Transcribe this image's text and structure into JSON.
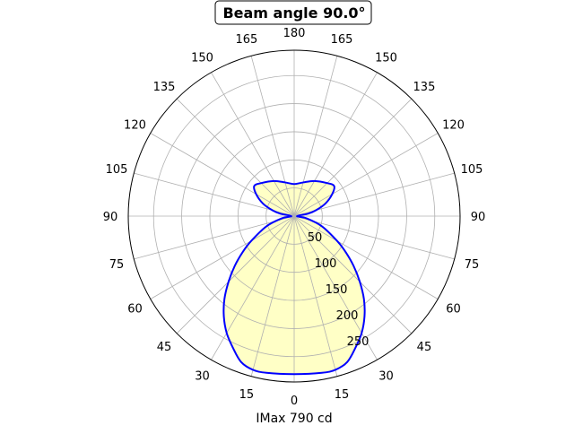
{
  "chart_data": {
    "type": "polar-line",
    "title": "Beam angle 90.0°",
    "xlabel": "IMax 790 cd",
    "radial_ticks": [
      50,
      100,
      150,
      200,
      250
    ],
    "rlim": [
      0,
      295
    ],
    "angular_tick_labels": [
      "0",
      "15",
      "30",
      "45",
      "60",
      "75",
      "90",
      "105",
      "120",
      "135",
      "150",
      "165",
      "180",
      "165",
      "150",
      "135",
      "120",
      "105",
      "90",
      "75",
      "60",
      "45",
      "30",
      "15"
    ],
    "grid": true,
    "line_color": "#0000ff",
    "fill_color": "#ffffc0",
    "series": [
      {
        "angle_deg": [
          0,
          10,
          15,
          20,
          25,
          30,
          35,
          40,
          45,
          50,
          55,
          60,
          70,
          80,
          90,
          100,
          105,
          112,
          120,
          127,
          135,
          150,
          165,
          180
        ],
        "intensity": [
          281,
          283,
          283,
          276,
          258,
          240,
          218,
          193,
          165,
          138,
          112,
          88,
          52,
          22,
          5,
          25,
          40,
          60,
          78,
          89,
          83,
          72,
          62,
          57
        ]
      }
    ]
  }
}
